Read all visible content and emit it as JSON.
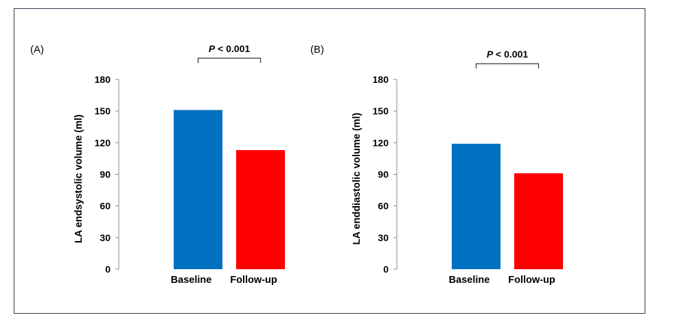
{
  "chart_data": [
    {
      "type": "bar",
      "panel_label": "(A)",
      "categories": [
        "Baseline",
        "Follow-up"
      ],
      "values": [
        151,
        113
      ],
      "colors": [
        "#0070c0",
        "#ff0000"
      ],
      "xlabel": "",
      "ylabel": "LA endsystolic volume (ml)",
      "ylim": [
        0,
        180
      ],
      "yticks": [
        0,
        30,
        60,
        90,
        120,
        150,
        180
      ],
      "significance": {
        "italic": "P",
        "rest": " < 0.001"
      },
      "grid": false,
      "legend": "none"
    },
    {
      "type": "bar",
      "panel_label": "(B)",
      "categories": [
        "Baseline",
        "Follow-up"
      ],
      "values": [
        119,
        91
      ],
      "colors": [
        "#0070c0",
        "#ff0000"
      ],
      "xlabel": "",
      "ylabel": "LA enddiastolic volume (ml)",
      "ylim": [
        0,
        180
      ],
      "yticks": [
        0,
        30,
        60,
        90,
        120,
        150,
        180
      ],
      "significance": {
        "italic": "P",
        "rest": " < 0.001"
      },
      "grid": false,
      "legend": "none"
    }
  ]
}
